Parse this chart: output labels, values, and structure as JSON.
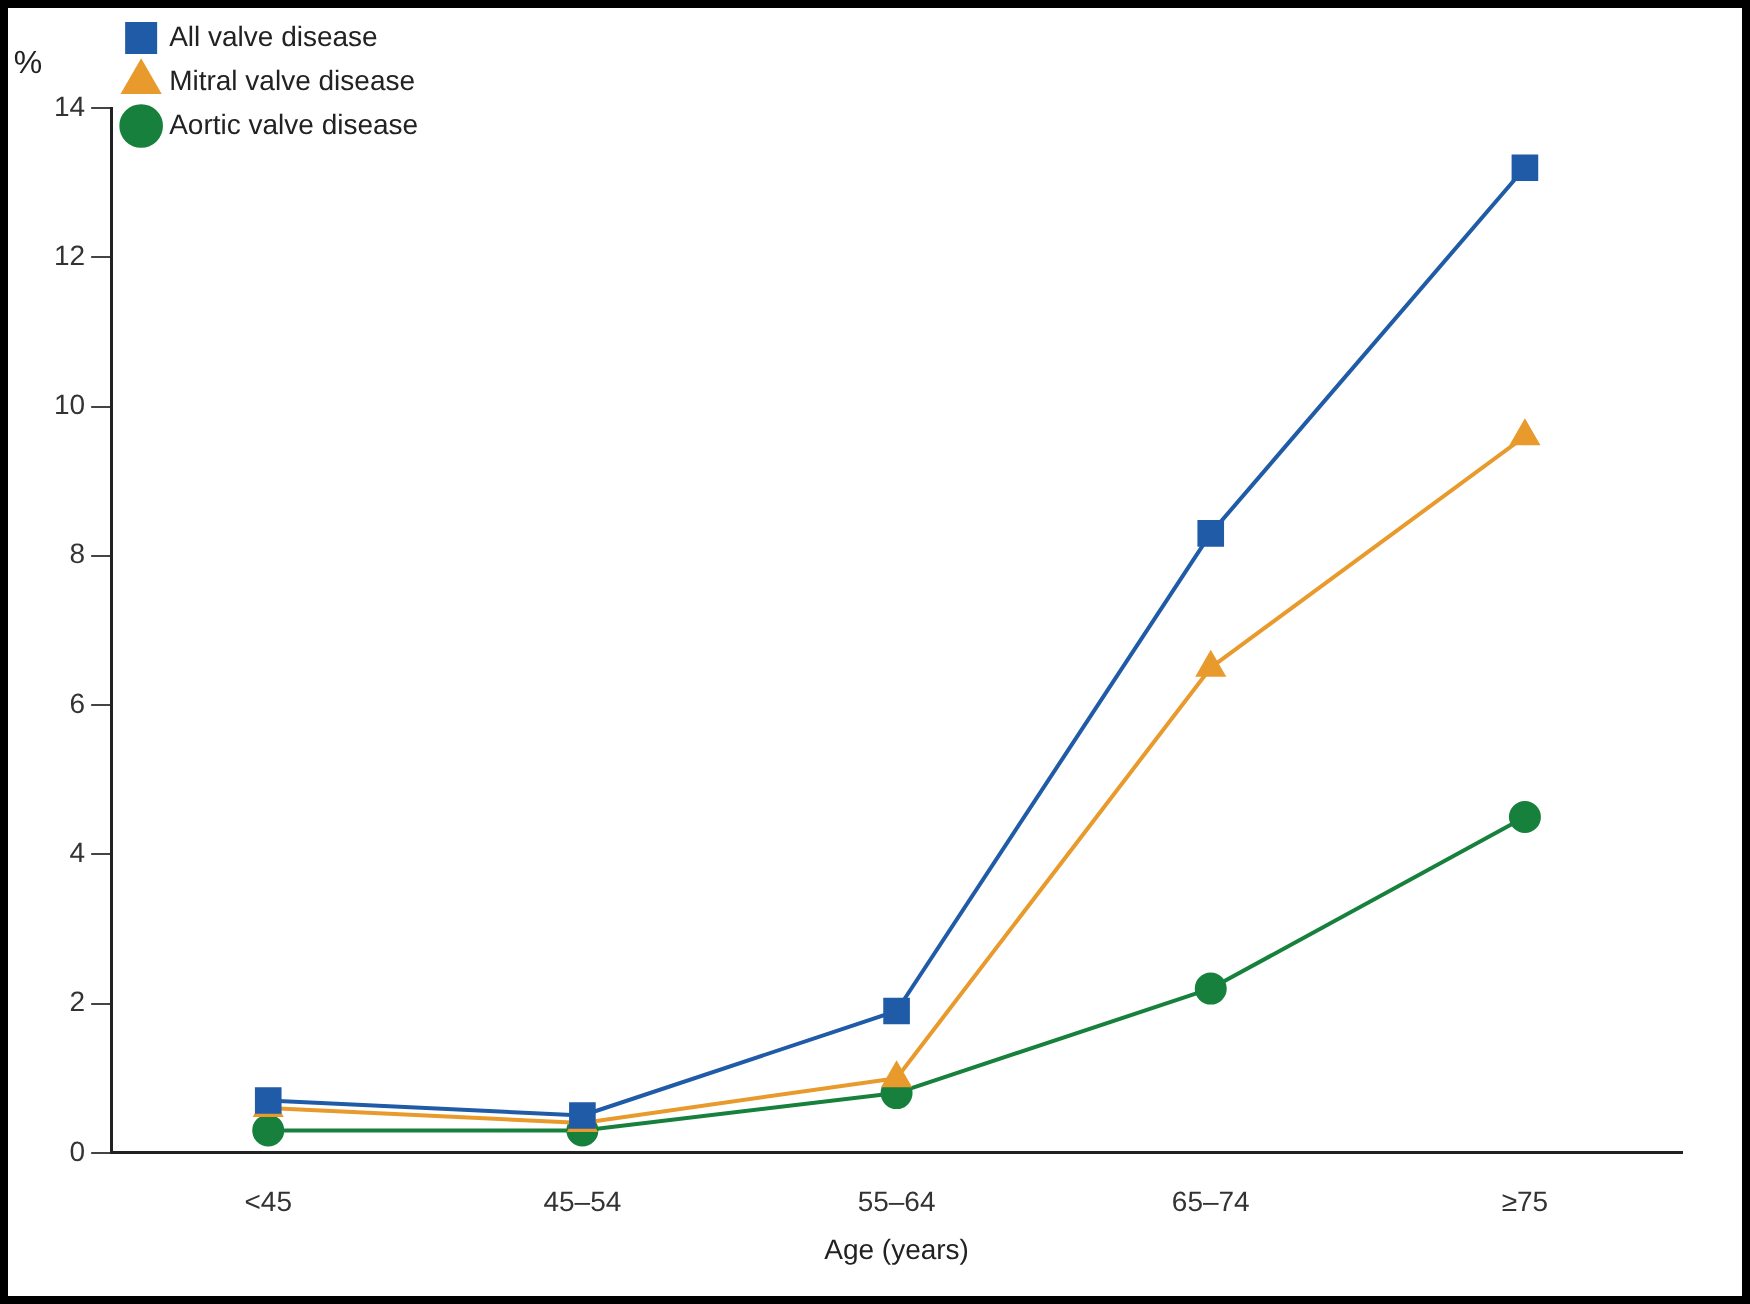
{
  "chart_data": {
    "type": "line",
    "ylabel": "%",
    "xlabel": "Age (years)",
    "categories": [
      "<45",
      "45–54",
      "55–64",
      "65–74",
      "≥75"
    ],
    "series": [
      {
        "name": "All valve disease",
        "color": "#1f5ba6",
        "marker": "square",
        "values": [
          0.7,
          0.5,
          1.9,
          8.3,
          13.2
        ]
      },
      {
        "name": "Mitral valve disease",
        "color": "#e89a2c",
        "marker": "triangle",
        "values": [
          0.6,
          0.4,
          1.0,
          6.5,
          9.6
        ]
      },
      {
        "name": "Aortic valve disease",
        "color": "#16803c",
        "marker": "circle",
        "values": [
          0.3,
          0.3,
          0.8,
          2.2,
          4.5
        ]
      }
    ],
    "ylim": [
      0,
      14
    ],
    "yticks": [
      0,
      2,
      4,
      6,
      8,
      10,
      12,
      14
    ],
    "grid": false,
    "legend": "top left",
    "line_style": "solid"
  }
}
